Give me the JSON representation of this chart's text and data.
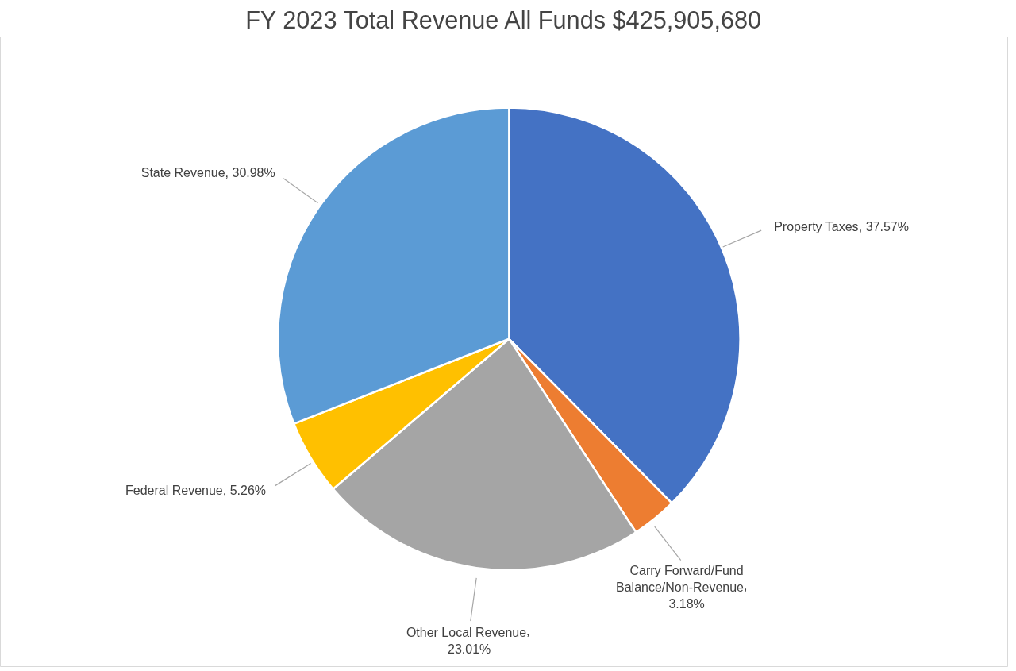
{
  "chart_data": {
    "type": "pie",
    "title": "FY 2023 Total Revenue All Funds $425,905,680",
    "categories": [
      "Property Taxes",
      "Carry Forward/Fund Balance/Non-Revenue",
      "Other Local Revenue",
      "Federal Revenue",
      "State Revenue"
    ],
    "values": [
      37.57,
      3.18,
      23.01,
      5.26,
      30.98
    ],
    "colors": [
      "#4472c4",
      "#ed7d31",
      "#a5a5a5",
      "#ffc000",
      "#5b9bd5"
    ],
    "value_labels": [
      ", 37.57%",
      ", 3.18%",
      ", 23.01%",
      ", 5.26%",
      ", 30.98%"
    ]
  }
}
